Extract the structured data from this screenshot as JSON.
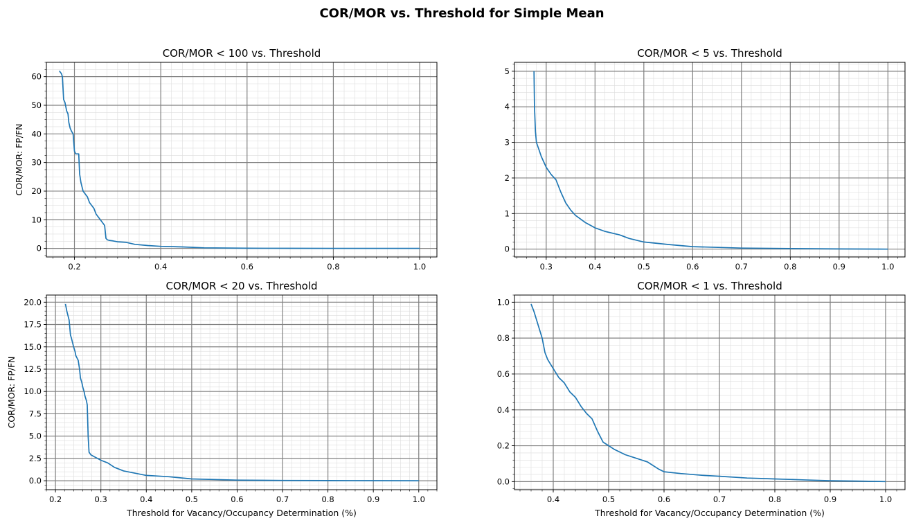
{
  "figure": {
    "title": "COR/MOR vs. Threshold for Simple Mean",
    "line_color": "#1f77b4",
    "major_grid_color": "#808080",
    "minor_grid_color": "#dddddd"
  },
  "chart_data": [
    {
      "type": "line",
      "title": "COR/MOR < 100 vs. Threshold",
      "xlabel": "",
      "ylabel": "COR/MOR: FP/FN",
      "xlim": [
        0.135,
        1.04
      ],
      "ylim": [
        -3,
        65
      ],
      "xticks": [
        0.2,
        0.4,
        0.6,
        0.8,
        1.0
      ],
      "xtick_labels": [
        "0.2",
        "0.4",
        "0.6",
        "0.8",
        "1.0"
      ],
      "yticks": [
        0,
        10,
        20,
        30,
        40,
        50,
        60
      ],
      "ytick_labels": [
        "0",
        "10",
        "20",
        "30",
        "40",
        "50",
        "60"
      ],
      "x_minor_step": 0.025,
      "y_minor_step": 2.5,
      "grid": true,
      "x": [
        0.165,
        0.17,
        0.172,
        0.175,
        0.178,
        0.182,
        0.185,
        0.187,
        0.19,
        0.193,
        0.197,
        0.2,
        0.203,
        0.21,
        0.212,
        0.215,
        0.22,
        0.225,
        0.23,
        0.235,
        0.24,
        0.245,
        0.25,
        0.255,
        0.26,
        0.265,
        0.27,
        0.273,
        0.276,
        0.28,
        0.29,
        0.3,
        0.32,
        0.34,
        0.37,
        0.4,
        0.45,
        0.5,
        0.6,
        0.7,
        0.8,
        0.9,
        1.0
      ],
      "y": [
        62,
        61,
        60,
        52,
        51,
        48,
        47,
        44,
        42,
        41,
        40,
        34,
        33,
        33,
        26,
        23,
        20,
        19,
        18,
        16,
        15,
        14,
        12,
        11,
        10,
        9,
        8,
        3.5,
        3.0,
        2.8,
        2.6,
        2.3,
        2.1,
        1.4,
        1.0,
        0.7,
        0.5,
        0.2,
        0.05,
        0.03,
        0.01,
        0.005,
        0.0
      ]
    },
    {
      "type": "line",
      "title": "COR/MOR < 5 vs. Threshold",
      "xlabel": "",
      "ylabel": "",
      "xlim": [
        0.235,
        1.035
      ],
      "ylim": [
        -0.22,
        5.25
      ],
      "xticks": [
        0.3,
        0.4,
        0.5,
        0.6,
        0.7,
        0.8,
        0.9,
        1.0
      ],
      "xtick_labels": [
        "0.3",
        "0.4",
        "0.5",
        "0.6",
        "0.7",
        "0.8",
        "0.9",
        "1.0"
      ],
      "yticks": [
        0,
        1,
        2,
        3,
        4,
        5
      ],
      "ytick_labels": [
        "0",
        "1",
        "2",
        "3",
        "4",
        "5"
      ],
      "x_minor_step": 0.02,
      "y_minor_step": 0.2,
      "grid": true,
      "x": [
        0.275,
        0.276,
        0.278,
        0.28,
        0.285,
        0.29,
        0.3,
        0.31,
        0.32,
        0.33,
        0.34,
        0.35,
        0.36,
        0.38,
        0.4,
        0.42,
        0.45,
        0.47,
        0.5,
        0.55,
        0.6,
        0.7,
        0.8,
        0.9,
        1.0
      ],
      "y": [
        5.0,
        4.0,
        3.3,
        3.0,
        2.8,
        2.6,
        2.3,
        2.1,
        1.95,
        1.6,
        1.3,
        1.1,
        0.95,
        0.75,
        0.6,
        0.5,
        0.4,
        0.3,
        0.2,
        0.13,
        0.07,
        0.03,
        0.015,
        0.005,
        0.0
      ]
    },
    {
      "type": "line",
      "title": "COR/MOR < 20 vs. Threshold",
      "xlabel": "Threshold for Vacancy/Occupancy Determination (%)",
      "ylabel": "COR/MOR: FP/FN",
      "xlim": [
        0.18,
        1.04
      ],
      "ylim": [
        -1.0,
        20.8
      ],
      "xticks": [
        0.2,
        0.3,
        0.4,
        0.5,
        0.6,
        0.7,
        0.8,
        0.9,
        1.0
      ],
      "xtick_labels": [
        "0.2",
        "0.3",
        "0.4",
        "0.5",
        "0.6",
        "0.7",
        "0.8",
        "0.9",
        "1.0"
      ],
      "yticks": [
        0,
        2.5,
        5,
        7.5,
        10,
        12.5,
        15,
        17.5,
        20
      ],
      "ytick_labels": [
        "0.0",
        "2.5",
        "5.0",
        "7.5",
        "10.0",
        "12.5",
        "15.0",
        "17.5",
        "20.0"
      ],
      "x_minor_step": 0.02,
      "y_minor_step": 0.5,
      "grid": true,
      "x": [
        0.222,
        0.225,
        0.23,
        0.233,
        0.235,
        0.24,
        0.243,
        0.245,
        0.25,
        0.253,
        0.255,
        0.258,
        0.26,
        0.263,
        0.265,
        0.268,
        0.27,
        0.272,
        0.274,
        0.278,
        0.285,
        0.3,
        0.315,
        0.33,
        0.35,
        0.38,
        0.4,
        0.45,
        0.5,
        0.6,
        0.7,
        0.8,
        0.9,
        1.0
      ],
      "y": [
        19.8,
        19.0,
        18.0,
        16.3,
        16.0,
        15.0,
        14.5,
        14.0,
        13.5,
        12.5,
        11.5,
        11.0,
        10.5,
        10.0,
        9.5,
        9.0,
        8.5,
        5.0,
        3.2,
        2.9,
        2.7,
        2.3,
        2.0,
        1.5,
        1.1,
        0.8,
        0.6,
        0.45,
        0.2,
        0.07,
        0.03,
        0.015,
        0.005,
        0.0
      ]
    },
    {
      "type": "line",
      "title": "COR/MOR < 1 vs. Threshold",
      "xlabel": "Threshold for Vacancy/Occupancy Determination (%)",
      "ylabel": "",
      "xlim": [
        0.33,
        1.035
      ],
      "ylim": [
        -0.045,
        1.04
      ],
      "xticks": [
        0.4,
        0.5,
        0.6,
        0.7,
        0.8,
        0.9,
        1.0
      ],
      "xtick_labels": [
        "0.4",
        "0.5",
        "0.6",
        "0.7",
        "0.8",
        "0.9",
        "1.0"
      ],
      "yticks": [
        0,
        0.2,
        0.4,
        0.6,
        0.8,
        1.0
      ],
      "ytick_labels": [
        "0.0",
        "0.2",
        "0.4",
        "0.6",
        "0.8",
        "1.0"
      ],
      "x_minor_step": 0.02,
      "y_minor_step": 0.04,
      "grid": true,
      "x": [
        0.36,
        0.365,
        0.37,
        0.375,
        0.38,
        0.385,
        0.39,
        0.4,
        0.41,
        0.42,
        0.43,
        0.44,
        0.45,
        0.46,
        0.47,
        0.48,
        0.49,
        0.5,
        0.51,
        0.53,
        0.55,
        0.57,
        0.59,
        0.6,
        0.63,
        0.67,
        0.7,
        0.75,
        0.8,
        0.85,
        0.9,
        0.95,
        1.0
      ],
      "y": [
        0.99,
        0.95,
        0.9,
        0.85,
        0.8,
        0.72,
        0.68,
        0.63,
        0.58,
        0.55,
        0.5,
        0.47,
        0.42,
        0.38,
        0.35,
        0.28,
        0.22,
        0.2,
        0.18,
        0.15,
        0.13,
        0.11,
        0.07,
        0.055,
        0.045,
        0.035,
        0.03,
        0.02,
        0.015,
        0.01,
        0.005,
        0.003,
        0.0
      ]
    }
  ]
}
